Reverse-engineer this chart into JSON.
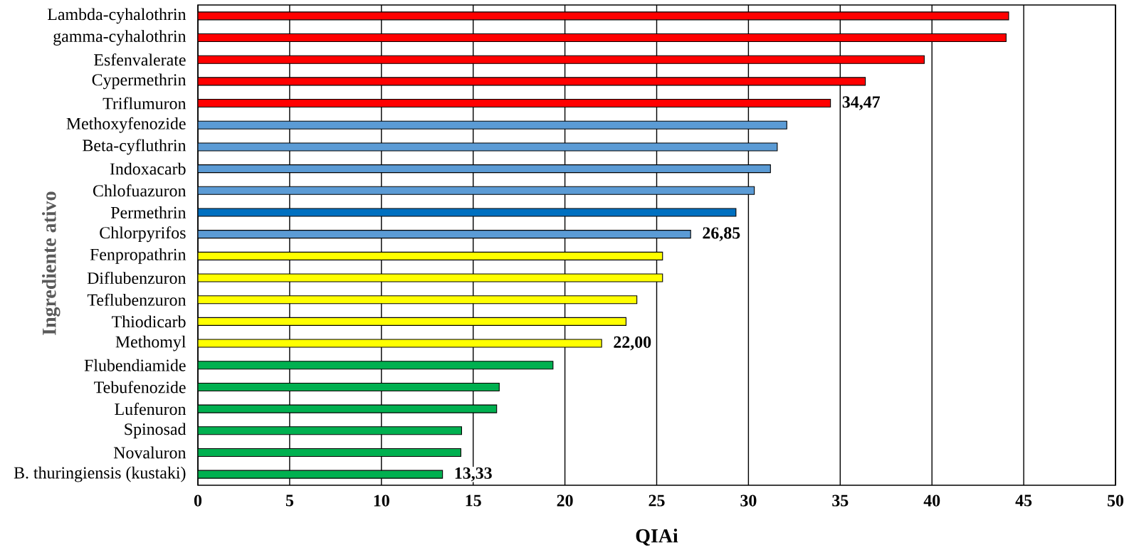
{
  "chart_data": {
    "type": "bar",
    "orientation": "horizontal",
    "xlabel": "QIAi",
    "ylabel": "Ingrediente ativo",
    "categories": [
      "Lambda-cyhalothrin",
      "gamma-cyhalothrin",
      "Esfenvalerate",
      "Cypermethrin",
      "Triflumuron",
      "Methoxyfenozide",
      "Beta-cyfluthrin",
      "Indoxacarb",
      "Chlofuazuron",
      "Permethrin",
      "Chlorpyrifos",
      "Fenpropathrin",
      "Diflubenzuron",
      "Teflubenzuron",
      "Thiodicarb",
      "Methomyl",
      "Flubendiamide",
      "Tebufenozide",
      "Lufenuron",
      "Spinosad",
      "Novaluron",
      "B. thuringiensis (kustaki)"
    ],
    "values": [
      44.18,
      44.04,
      39.58,
      36.37,
      34.47,
      32.09,
      31.57,
      31.2,
      30.32,
      29.32,
      26.85,
      25.32,
      25.32,
      23.92,
      23.33,
      22.0,
      19.35,
      16.42,
      16.28,
      14.37,
      14.33,
      13.33
    ],
    "colors": [
      "#ff0000",
      "#ff0000",
      "#ff0000",
      "#ff0000",
      "#ff0000",
      "#5b9bd5",
      "#5b9bd5",
      "#5b9bd5",
      "#5b9bd5",
      "#0070c0",
      "#5b9bd5",
      "#ffff00",
      "#ffff00",
      "#ffff00",
      "#ffff00",
      "#ffff00",
      "#00b050",
      "#00b050",
      "#00b050",
      "#00b050",
      "#00b050",
      "#00b050"
    ],
    "value_labels": [
      null,
      null,
      null,
      null,
      "34,47",
      null,
      null,
      null,
      null,
      null,
      "26,85",
      null,
      null,
      null,
      null,
      "22,00",
      null,
      null,
      null,
      null,
      null,
      "13,33"
    ],
    "xlim": [
      0,
      50
    ],
    "xticks": [
      0,
      5,
      10,
      15,
      20,
      25,
      30,
      35,
      40,
      45,
      50
    ],
    "grid": "x"
  }
}
